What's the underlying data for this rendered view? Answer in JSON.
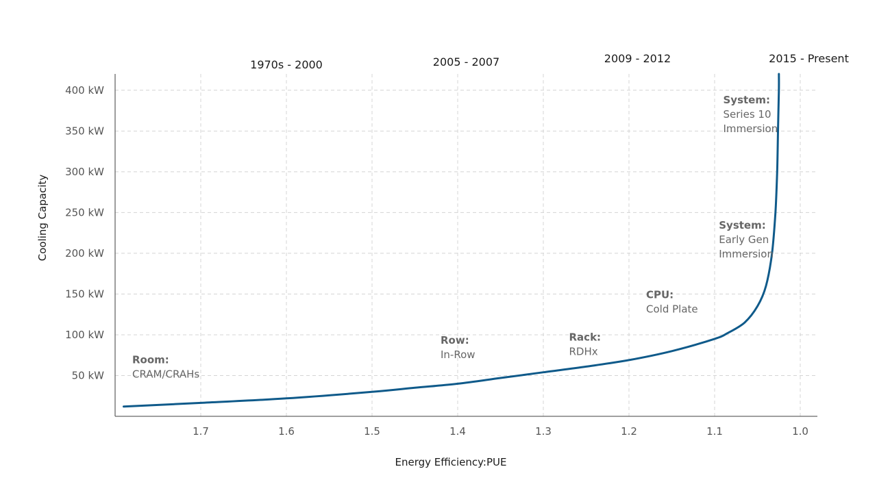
{
  "chart_data": {
    "type": "line",
    "xlabel": "Energy Efficiency:PUE",
    "ylabel": "Cooling Capacity",
    "x_reversed": true,
    "xlim": [
      1.8,
      0.98
    ],
    "ylim": [
      0,
      420
    ],
    "grid": true,
    "x_ticks": [
      {
        "value": 1.7,
        "label": "1.7"
      },
      {
        "value": 1.6,
        "label": "1.6"
      },
      {
        "value": 1.5,
        "label": "1.5"
      },
      {
        "value": 1.4,
        "label": "1.4"
      },
      {
        "value": 1.3,
        "label": "1.3"
      },
      {
        "value": 1.2,
        "label": "1.2"
      },
      {
        "value": 1.1,
        "label": "1.1"
      },
      {
        "value": 1.0,
        "label": "1.0"
      }
    ],
    "y_ticks": [
      {
        "value": 50,
        "label": "50 kW"
      },
      {
        "value": 100,
        "label": "100 kW"
      },
      {
        "value": 150,
        "label": "150 kW"
      },
      {
        "value": 200,
        "label": "200 kW"
      },
      {
        "value": 250,
        "label": "250 kW"
      },
      {
        "value": 300,
        "label": "300 kW"
      },
      {
        "value": 350,
        "label": "350 kW"
      },
      {
        "value": 400,
        "label": "400 kW"
      }
    ],
    "eras": [
      {
        "label": "1970s - 2000",
        "x": 1.6
      },
      {
        "label": "2005 - 2007",
        "x": 1.39
      },
      {
        "label": "2009 - 2012",
        "x": 1.19
      },
      {
        "label": "2015 - Present",
        "x": 0.99
      }
    ],
    "series": [
      {
        "color": "#0f5a8a",
        "points": [
          [
            1.79,
            12
          ],
          [
            1.7,
            16.5
          ],
          [
            1.6,
            22
          ],
          [
            1.5,
            30
          ],
          [
            1.45,
            35
          ],
          [
            1.4,
            40
          ],
          [
            1.35,
            47
          ],
          [
            1.3,
            54
          ],
          [
            1.25,
            61
          ],
          [
            1.2,
            69
          ],
          [
            1.15,
            80
          ],
          [
            1.1,
            95
          ],
          [
            1.085,
            102
          ],
          [
            1.065,
            115
          ],
          [
            1.05,
            135
          ],
          [
            1.04,
            160
          ],
          [
            1.033,
            200
          ],
          [
            1.029,
            250
          ],
          [
            1.027,
            300
          ],
          [
            1.026,
            350
          ],
          [
            1.025,
            400
          ],
          [
            1.025,
            420
          ]
        ]
      }
    ],
    "annotations": [
      {
        "head": "Room:",
        "body": [
          "CRAM/CRAHs"
        ],
        "x": 1.78,
        "y": 65
      },
      {
        "head": "Row:",
        "body": [
          "In-Row"
        ],
        "x": 1.42,
        "y": 89
      },
      {
        "head": "Rack:",
        "body": [
          "RDHx"
        ],
        "x": 1.27,
        "y": 93
      },
      {
        "head": "CPU:",
        "body": [
          "Cold Plate"
        ],
        "x": 1.18,
        "y": 145
      },
      {
        "head": "System:",
        "body": [
          "Early Gen",
          "Immersion"
        ],
        "x": 1.095,
        "y": 230
      },
      {
        "head": "System:",
        "body": [
          "Series 10",
          "Immersion"
        ],
        "x": 1.09,
        "y": 384
      }
    ]
  }
}
